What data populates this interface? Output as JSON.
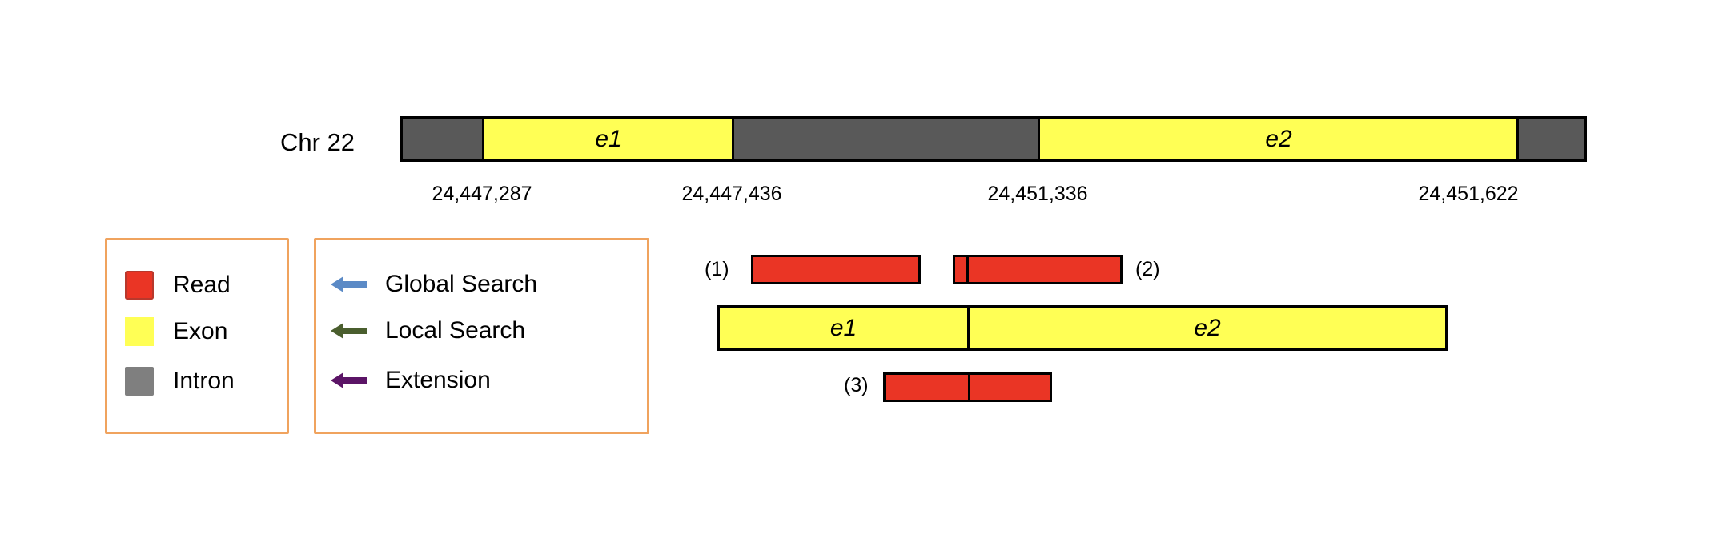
{
  "chromosome": {
    "label": "Chr 22",
    "exons": [
      {
        "name": "e1",
        "start": 24447287,
        "end": 24447436
      },
      {
        "name": "e2",
        "start": 24451336,
        "end": 24451622
      }
    ],
    "coordinates": [
      "24,447,287",
      "24,447,436",
      "24,451,336",
      "24,451,622"
    ]
  },
  "legend_types": {
    "items": [
      {
        "label": "Read",
        "color": "#ea3525"
      },
      {
        "label": "Exon",
        "color": "#ffff55"
      },
      {
        "label": "Intron",
        "color": "#7f7f7f"
      }
    ]
  },
  "legend_search": {
    "items": [
      {
        "label": "Global Search",
        "color": "#5b8ac6",
        "icon": "arrow-left-icon"
      },
      {
        "label": "Local Search",
        "color": "#4a5e2e",
        "icon": "arrow-left-icon"
      },
      {
        "label": "Extension",
        "color": "#5b1466",
        "icon": "arrow-left-icon"
      }
    ]
  },
  "transcript": {
    "exons": [
      "e1",
      "e2"
    ]
  },
  "reads": [
    {
      "label": "(1)"
    },
    {
      "label": "(2)"
    },
    {
      "label": "(3)"
    }
  ],
  "colors": {
    "intron_track": "#595959",
    "exon": "#ffff55",
    "read": "#ea3525",
    "legend_border": "#f0a35e"
  }
}
